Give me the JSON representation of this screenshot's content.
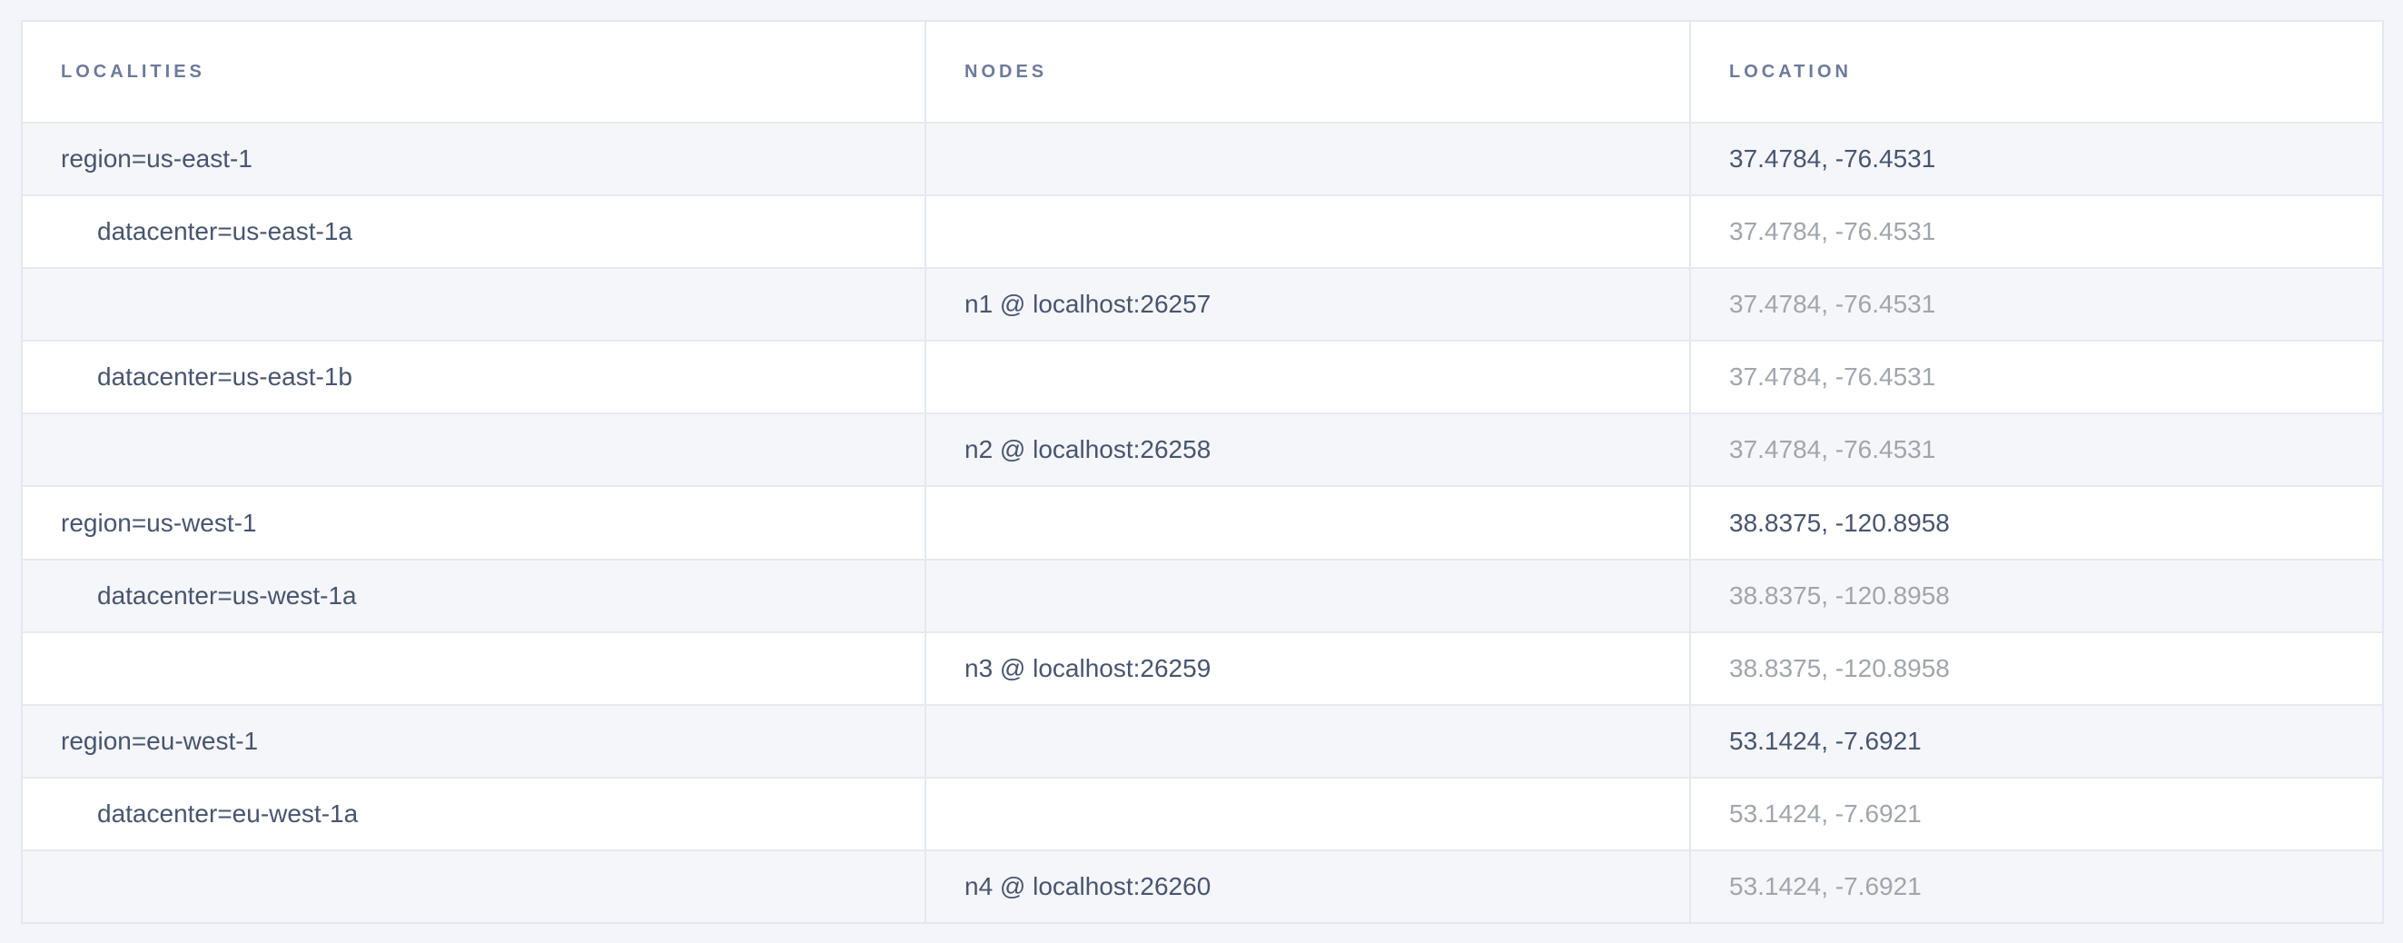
{
  "page": {
    "background_color": "#f4f5fa"
  },
  "table": {
    "columns": [
      {
        "label": "LOCALITIES"
      },
      {
        "label": "NODES"
      },
      {
        "label": "LOCATION"
      }
    ],
    "colors": {
      "header_text": "#6e7a9b",
      "primary_text": "#48556e",
      "faded_text": "#a1a5ac",
      "row_background": "#ffffff",
      "row_alt_background": "#f4f6fa",
      "border": "#e3e8ee"
    },
    "rows": [
      {
        "type": "locality",
        "depth": 0,
        "locality": "region=us-east-1",
        "nodes": "",
        "location": "37.4784, -76.4531",
        "location_emphasis": "primary"
      },
      {
        "type": "locality",
        "depth": 1,
        "locality": "datacenter=us-east-1a",
        "nodes": "",
        "location": "37.4784, -76.4531",
        "location_emphasis": "faded"
      },
      {
        "type": "node",
        "depth": 2,
        "locality": "",
        "nodes": "n1 @ localhost:26257",
        "location": "37.4784, -76.4531",
        "location_emphasis": "faded"
      },
      {
        "type": "locality",
        "depth": 1,
        "locality": "datacenter=us-east-1b",
        "nodes": "",
        "location": "37.4784, -76.4531",
        "location_emphasis": "faded"
      },
      {
        "type": "node",
        "depth": 2,
        "locality": "",
        "nodes": "n2 @ localhost:26258",
        "location": "37.4784, -76.4531",
        "location_emphasis": "faded"
      },
      {
        "type": "locality",
        "depth": 0,
        "locality": "region=us-west-1",
        "nodes": "",
        "location": "38.8375, -120.8958",
        "location_emphasis": "primary"
      },
      {
        "type": "locality",
        "depth": 1,
        "locality": "datacenter=us-west-1a",
        "nodes": "",
        "location": "38.8375, -120.8958",
        "location_emphasis": "faded"
      },
      {
        "type": "node",
        "depth": 2,
        "locality": "",
        "nodes": "n3 @ localhost:26259",
        "location": "38.8375, -120.8958",
        "location_emphasis": "faded"
      },
      {
        "type": "locality",
        "depth": 0,
        "locality": "region=eu-west-1",
        "nodes": "",
        "location": "53.1424, -7.6921",
        "location_emphasis": "primary"
      },
      {
        "type": "locality",
        "depth": 1,
        "locality": "datacenter=eu-west-1a",
        "nodes": "",
        "location": "53.1424, -7.6921",
        "location_emphasis": "faded"
      },
      {
        "type": "node",
        "depth": 2,
        "locality": "",
        "nodes": "n4 @ localhost:26260",
        "location": "53.1424, -7.6921",
        "location_emphasis": "faded"
      }
    ]
  }
}
